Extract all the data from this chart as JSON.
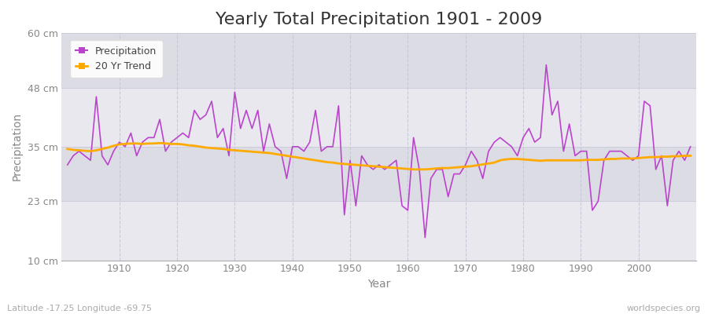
{
  "title": "Yearly Total Precipitation 1901 - 2009",
  "xlabel": "Year",
  "ylabel": "Precipitation",
  "lat_lon_label": "Latitude -17.25 Longitude -69.75",
  "source_label": "worldspecies.org",
  "years": [
    1901,
    1902,
    1903,
    1904,
    1905,
    1906,
    1907,
    1908,
    1909,
    1910,
    1911,
    1912,
    1913,
    1914,
    1915,
    1916,
    1917,
    1918,
    1919,
    1920,
    1921,
    1922,
    1923,
    1924,
    1925,
    1926,
    1927,
    1928,
    1929,
    1930,
    1931,
    1932,
    1933,
    1934,
    1935,
    1936,
    1937,
    1938,
    1939,
    1940,
    1941,
    1942,
    1943,
    1944,
    1945,
    1946,
    1947,
    1948,
    1949,
    1950,
    1951,
    1952,
    1953,
    1954,
    1955,
    1956,
    1957,
    1958,
    1959,
    1960,
    1961,
    1962,
    1963,
    1964,
    1965,
    1966,
    1967,
    1968,
    1969,
    1970,
    1971,
    1972,
    1973,
    1974,
    1975,
    1976,
    1977,
    1978,
    1979,
    1980,
    1981,
    1982,
    1983,
    1984,
    1985,
    1986,
    1987,
    1988,
    1989,
    1990,
    1991,
    1992,
    1993,
    1994,
    1995,
    1996,
    1997,
    1998,
    1999,
    2000,
    2001,
    2002,
    2003,
    2004,
    2005,
    2006,
    2007,
    2008,
    2009
  ],
  "precip": [
    31,
    33,
    34,
    33,
    32,
    46,
    33,
    31,
    34,
    36,
    35,
    38,
    33,
    36,
    37,
    37,
    41,
    34,
    36,
    37,
    38,
    37,
    43,
    41,
    42,
    45,
    37,
    39,
    33,
    47,
    39,
    43,
    39,
    43,
    34,
    40,
    35,
    34,
    28,
    35,
    35,
    34,
    36,
    43,
    34,
    35,
    35,
    44,
    20,
    32,
    22,
    33,
    31,
    30,
    31,
    30,
    31,
    32,
    22,
    21,
    37,
    30,
    15,
    28,
    30,
    30,
    24,
    29,
    29,
    31,
    34,
    32,
    28,
    34,
    36,
    37,
    36,
    35,
    33,
    37,
    39,
    36,
    37,
    53,
    42,
    45,
    34,
    40,
    33,
    34,
    34,
    21,
    23,
    32,
    34,
    34,
    34,
    33,
    32,
    33,
    45,
    44,
    30,
    33,
    22,
    32,
    34,
    32,
    35
  ],
  "trend": [
    34.5,
    34.3,
    34.2,
    34.1,
    34.0,
    34.2,
    34.5,
    34.8,
    35.2,
    35.5,
    35.6,
    35.7,
    35.7,
    35.6,
    35.7,
    35.7,
    35.8,
    35.7,
    35.6,
    35.6,
    35.5,
    35.3,
    35.2,
    35.0,
    34.8,
    34.7,
    34.6,
    34.5,
    34.3,
    34.2,
    34.1,
    34.0,
    33.9,
    33.8,
    33.7,
    33.6,
    33.4,
    33.2,
    33.0,
    32.8,
    32.6,
    32.4,
    32.2,
    32.0,
    31.8,
    31.6,
    31.5,
    31.3,
    31.2,
    31.1,
    31.0,
    30.9,
    30.8,
    30.7,
    30.6,
    30.5,
    30.4,
    30.3,
    30.2,
    30.1,
    30.0,
    30.0,
    30.0,
    30.1,
    30.2,
    30.3,
    30.3,
    30.4,
    30.5,
    30.6,
    30.7,
    30.9,
    31.1,
    31.3,
    31.5,
    32.0,
    32.2,
    32.3,
    32.3,
    32.2,
    32.1,
    32.0,
    31.9,
    32.0,
    32.0,
    32.0,
    32.0,
    32.0,
    32.0,
    32.0,
    32.1,
    32.1,
    32.1,
    32.2,
    32.3,
    32.3,
    32.4,
    32.4,
    32.4,
    32.5,
    32.6,
    32.7,
    32.7,
    32.8,
    32.8,
    32.9,
    32.9,
    33.0,
    33.0
  ],
  "precip_color": "#bb44cc",
  "trend_color": "#ffaa00",
  "fig_bg_color": "#ffffff",
  "plot_bg_color_light": "#e8e8ee",
  "plot_bg_color_dark": "#dcdce4",
  "grid_color": "#c8c8d8",
  "ylim": [
    10,
    60
  ],
  "yticks": [
    10,
    23,
    35,
    48,
    60
  ],
  "ytick_labels": [
    "10 cm",
    "23 cm",
    "35 cm",
    "48 cm",
    "60 cm"
  ],
  "xlim": [
    1900,
    2010
  ],
  "xticks": [
    1910,
    1920,
    1930,
    1940,
    1950,
    1960,
    1970,
    1980,
    1990,
    2000
  ],
  "title_fontsize": 16,
  "axis_label_fontsize": 10,
  "tick_fontsize": 9,
  "legend_fontsize": 9
}
